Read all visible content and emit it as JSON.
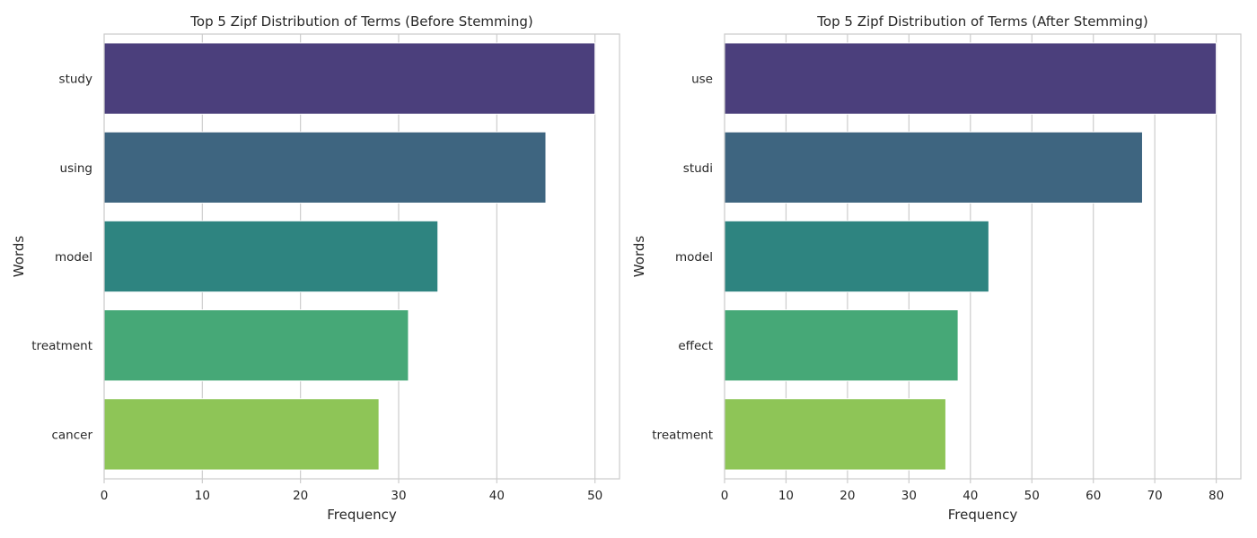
{
  "chart_data": [
    {
      "type": "bar",
      "orientation": "horizontal",
      "title": "Top 5 Zipf Distribution of Terms (Before Stemming)",
      "xlabel": "Frequency",
      "ylabel": "Words",
      "categories": [
        "study",
        "using",
        "model",
        "treatment",
        "cancer"
      ],
      "values": [
        50,
        45,
        34,
        31,
        28
      ],
      "colors": [
        "#4b3f7c",
        "#3e6580",
        "#2e8480",
        "#46a877",
        "#8ec557"
      ],
      "xlim": [
        0,
        52.5
      ],
      "xticks": [
        0,
        10,
        20,
        30,
        40,
        50
      ],
      "grid": true
    },
    {
      "type": "bar",
      "orientation": "horizontal",
      "title": "Top 5 Zipf Distribution of Terms (After Stemming)",
      "xlabel": "Frequency",
      "ylabel": "Words",
      "categories": [
        "use",
        "studi",
        "model",
        "effect",
        "treatment"
      ],
      "values": [
        80,
        68,
        43,
        38,
        36
      ],
      "colors": [
        "#4b3f7c",
        "#3e6580",
        "#2e8480",
        "#46a877",
        "#8ec557"
      ],
      "xlim": [
        0,
        84
      ],
      "xticks": [
        0,
        10,
        20,
        30,
        40,
        50,
        60,
        70,
        80
      ],
      "grid": true
    }
  ]
}
